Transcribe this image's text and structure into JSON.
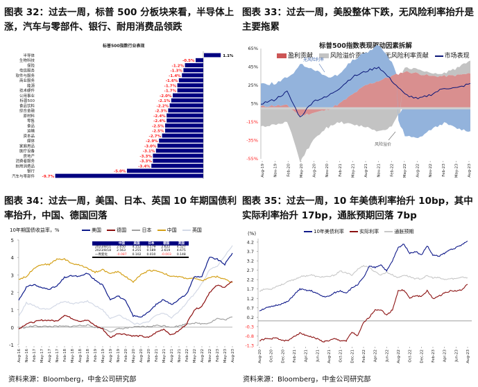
{
  "fig32": {
    "title": "图表 32：过去一周，标普 500 分板块来看，半导体上涨，汽车与零部件、银行、耐用消费品领跌",
    "chart_data": {
      "type": "bar",
      "orientation": "horizontal",
      "title": "标普500指数行业表现",
      "categories": [
        "半导体",
        "生物科技",
        "保险",
        "电信服务",
        "软件与服务",
        "商业服务",
        "能源",
        "技术硬件",
        "公用事业",
        "标普500",
        "食品饮料",
        "综合金融",
        "原材料",
        "零售",
        "食品",
        "运输",
        "资本品",
        "媒体",
        "家庭用品",
        "医疗设备",
        "房地产",
        "消费者服务",
        "耐用消费品",
        "银行",
        "汽车与零部件"
      ],
      "values": [
        1.1,
        -0.5,
        -1.2,
        -1.3,
        -1.4,
        -1.6,
        -1.7,
        -1.7,
        -2.0,
        -2.1,
        -2.2,
        -2.3,
        -2.4,
        -2.4,
        -2.5,
        -2.5,
        -2.7,
        -2.9,
        -3.0,
        -3.1,
        -3.3,
        -3.3,
        -3.4,
        -5.0,
        -9.7
      ],
      "unit": "%",
      "colors": {
        "bar": "#000080",
        "negative_label": "#ff2020",
        "positive_label": "#000000"
      }
    }
  },
  "fig33": {
    "title": "图表 33：过去一周，美股整体下跌，无风险利率抬升是主要拖累",
    "chart_data": {
      "type": "area",
      "stacked": true,
      "title": "标普500指数表现驱动因素拆解",
      "x": [
        "Aug-19",
        "Nov-19",
        "Feb-20",
        "May-20",
        "Aug-20",
        "Nov-20",
        "Feb-21",
        "May-21",
        "Aug-21",
        "Nov-21",
        "Feb-22",
        "May-22",
        "Aug-22",
        "Nov-22",
        "Feb-23",
        "May-23",
        "Aug-23"
      ],
      "yticks": [
        "65%",
        "45%",
        "25%",
        "5%",
        "-15%",
        "-35%",
        "-55%"
      ],
      "ylim": [
        -55,
        65
      ],
      "series": [
        {
          "name": "盈利贡献",
          "color": "#d98f8f",
          "values": [
            2,
            3,
            3,
            -8,
            -5,
            -2,
            5,
            15,
            25,
            30,
            35,
            40,
            38,
            35,
            35,
            36,
            38
          ]
        },
        {
          "name": "风险溢价贡献",
          "color": "#c3c3c3",
          "values": [
            -20,
            -18,
            -15,
            -50,
            -30,
            -20,
            -15,
            -18,
            -20,
            -25,
            -20,
            5,
            5,
            3,
            3,
            8,
            14
          ]
        },
        {
          "name": "无风险利率贡献",
          "color": "#93b3dc",
          "values": [
            24,
            24,
            30,
            48,
            43,
            34,
            32,
            37,
            35,
            40,
            15,
            -30,
            -33,
            -23,
            -16,
            -22,
            -25
          ]
        },
        {
          "name": "市场表现",
          "type": "line",
          "color": "#0a1678",
          "values": [
            5,
            9,
            18,
            -10,
            8,
            12,
            22,
            34,
            40,
            45,
            30,
            15,
            10,
            15,
            22,
            22,
            27
          ]
        }
      ],
      "annotations": [
        "无风险利率",
        "风险溢价"
      ]
    }
  },
  "fig34": {
    "title": "图表 34：过去一周，美国、日本、英国 10 年期国债利率抬升，中国、德国回落",
    "chart_data": {
      "type": "line",
      "ylabel": "10年期国债收益率，%",
      "ylim": [
        -1,
        5
      ],
      "yticks": [
        "5",
        "4",
        "3",
        "2",
        "1",
        "0",
        "-1"
      ],
      "x": [
        "Aug-16",
        "Nov-16",
        "Feb-17",
        "May-17",
        "Aug-17",
        "Nov-17",
        "Feb-18",
        "May-18",
        "Aug-18",
        "Nov-18",
        "Feb-19",
        "May-19",
        "Aug-19",
        "Nov-19",
        "Feb-20",
        "May-20",
        "Aug-20",
        "Nov-20",
        "Feb-21",
        "May-21",
        "Aug-21",
        "Nov-21",
        "Feb-22",
        "May-22",
        "Aug-22",
        "Nov-22",
        "Feb-23",
        "May-23",
        "Aug-23"
      ],
      "series": [
        {
          "name": "美国",
          "color": "#0c1a8a",
          "values": [
            1.55,
            2.3,
            2.45,
            2.25,
            2.2,
            2.35,
            2.85,
            2.95,
            2.9,
            3.1,
            2.7,
            2.4,
            1.6,
            1.8,
            1.5,
            0.65,
            0.6,
            0.85,
            1.3,
            1.6,
            1.3,
            1.6,
            1.9,
            2.9,
            2.9,
            4.0,
            3.9,
            3.6,
            4.25
          ]
        },
        {
          "name": "德国",
          "color": "#8b0d0d",
          "values": [
            -0.1,
            0.2,
            0.3,
            0.4,
            0.4,
            0.35,
            0.7,
            0.5,
            0.35,
            0.4,
            0.1,
            -0.1,
            -0.6,
            -0.35,
            -0.4,
            -0.5,
            -0.5,
            -0.6,
            -0.3,
            -0.1,
            -0.45,
            -0.2,
            0.2,
            1.0,
            1.2,
            2.0,
            2.4,
            2.3,
            2.62
          ]
        },
        {
          "name": "日本",
          "color": "#a0a0a0",
          "values": [
            -0.05,
            0.0,
            0.08,
            0.05,
            0.05,
            0.05,
            0.05,
            0.05,
            0.1,
            0.12,
            0.0,
            -0.05,
            -0.25,
            -0.1,
            -0.05,
            0.0,
            0.03,
            0.03,
            0.1,
            0.08,
            0.02,
            0.07,
            0.2,
            0.24,
            0.2,
            0.25,
            0.5,
            0.42,
            0.59
          ]
        },
        {
          "name": "中国",
          "color": "#d4a017",
          "values": [
            2.75,
            2.9,
            3.4,
            3.6,
            3.6,
            3.9,
            3.9,
            3.65,
            3.55,
            3.4,
            3.15,
            3.3,
            3.05,
            3.2,
            2.9,
            2.6,
            3.0,
            3.25,
            3.25,
            3.1,
            2.9,
            2.9,
            2.8,
            2.8,
            2.65,
            2.85,
            2.9,
            2.75,
            2.56
          ]
        },
        {
          "name": "英国",
          "color": "#d3d9e6",
          "values": [
            0.6,
            1.4,
            1.25,
            1.05,
            1.05,
            1.3,
            1.5,
            1.35,
            1.4,
            1.5,
            1.25,
            1.0,
            0.5,
            0.7,
            0.5,
            0.2,
            0.2,
            0.3,
            0.7,
            0.8,
            0.55,
            0.9,
            1.4,
            1.9,
            2.5,
            3.3,
            3.5,
            4.1,
            4.68
          ]
        }
      ],
      "table": {
        "headers": [
          "",
          "中国",
          "美国",
          "日本",
          "德国",
          "英国"
        ],
        "rows": [
          [
            "2023/8/11",
            "2.650",
            "4.152",
            "0.579",
            "2.622",
            "4.527"
          ],
          [
            "2023/8/18",
            "2.563",
            "4.255",
            "0.589",
            "2.619",
            "4.675"
          ],
          [
            "一周变化",
            "-0.087",
            "0.102",
            "0.010",
            "-0.003",
            "0.148"
          ]
        ]
      }
    },
    "source": "资料来源：Bloomberg，中金公司研究部"
  },
  "fig35": {
    "title": "图表 35：过去一周，10 年美债利率抬升 10bp，其中实际利率抬升 17bp，通胀预期回落 7bp",
    "chart_data": {
      "type": "line",
      "ylabel": "(%)",
      "ylim": [
        -1.3,
        4.2
      ],
      "yticks": [
        "4.2",
        "3.7",
        "3.2",
        "2.7",
        "2.2",
        "1.7",
        "1.2",
        "0.7",
        "0.2",
        "-0.3",
        "-0.8",
        "-1.3"
      ],
      "xticks": [
        "Aug-20",
        "Oct-20",
        "Dec-20",
        "Feb-21",
        "Apr-21",
        "Jun-21",
        "Aug-21",
        "Oct-21",
        "Dec-21",
        "Feb-22",
        "Apr-22",
        "Jun-22",
        "Aug-22",
        "Oct-22",
        "Dec-22",
        "Feb-23",
        "Apr-23",
        "Jun-23",
        "Aug-23"
      ],
      "series": [
        {
          "name": "10年美债利率",
          "color": "#101a8a",
          "values": [
            0.55,
            0.68,
            0.75,
            0.85,
            0.92,
            1.05,
            1.4,
            1.7,
            1.63,
            1.6,
            1.45,
            1.3,
            1.3,
            1.5,
            1.6,
            1.5,
            1.75,
            1.95,
            2.3,
            2.9,
            2.85,
            3.0,
            2.65,
            3.2,
            3.9,
            4.1,
            3.6,
            3.7,
            3.5,
            4.0,
            3.5,
            3.45,
            3.6,
            3.8,
            3.9,
            4.05,
            4.25
          ]
        },
        {
          "name": "实际利率",
          "color": "#8b1010",
          "values": [
            -1.05,
            -0.95,
            -0.95,
            -0.9,
            -1.05,
            -1.05,
            -0.8,
            -0.65,
            -0.75,
            -0.85,
            -0.95,
            -1.1,
            -1.05,
            -0.95,
            -1.05,
            -1.05,
            -0.6,
            -0.8,
            -0.1,
            0.2,
            0.6,
            0.6,
            0.3,
            0.6,
            1.6,
            1.65,
            1.2,
            1.35,
            1.3,
            1.6,
            1.2,
            1.3,
            1.5,
            1.6,
            1.6,
            1.65,
            1.95
          ]
        },
        {
          "name": "通胀预期",
          "color": "#c8c8c8",
          "values": [
            1.6,
            1.7,
            1.7,
            1.85,
            1.95,
            2.1,
            2.2,
            2.35,
            2.4,
            2.45,
            2.35,
            2.35,
            2.35,
            2.45,
            2.65,
            2.55,
            2.45,
            2.75,
            2.95,
            2.85,
            2.6,
            2.45,
            2.6,
            2.45,
            2.3,
            2.45,
            2.35,
            2.25,
            2.25,
            2.4,
            2.3,
            2.3,
            2.2,
            2.25,
            2.25,
            2.35,
            2.3
          ]
        }
      ]
    },
    "source": "资料来源：Bloomberg，中金公司研究部"
  }
}
